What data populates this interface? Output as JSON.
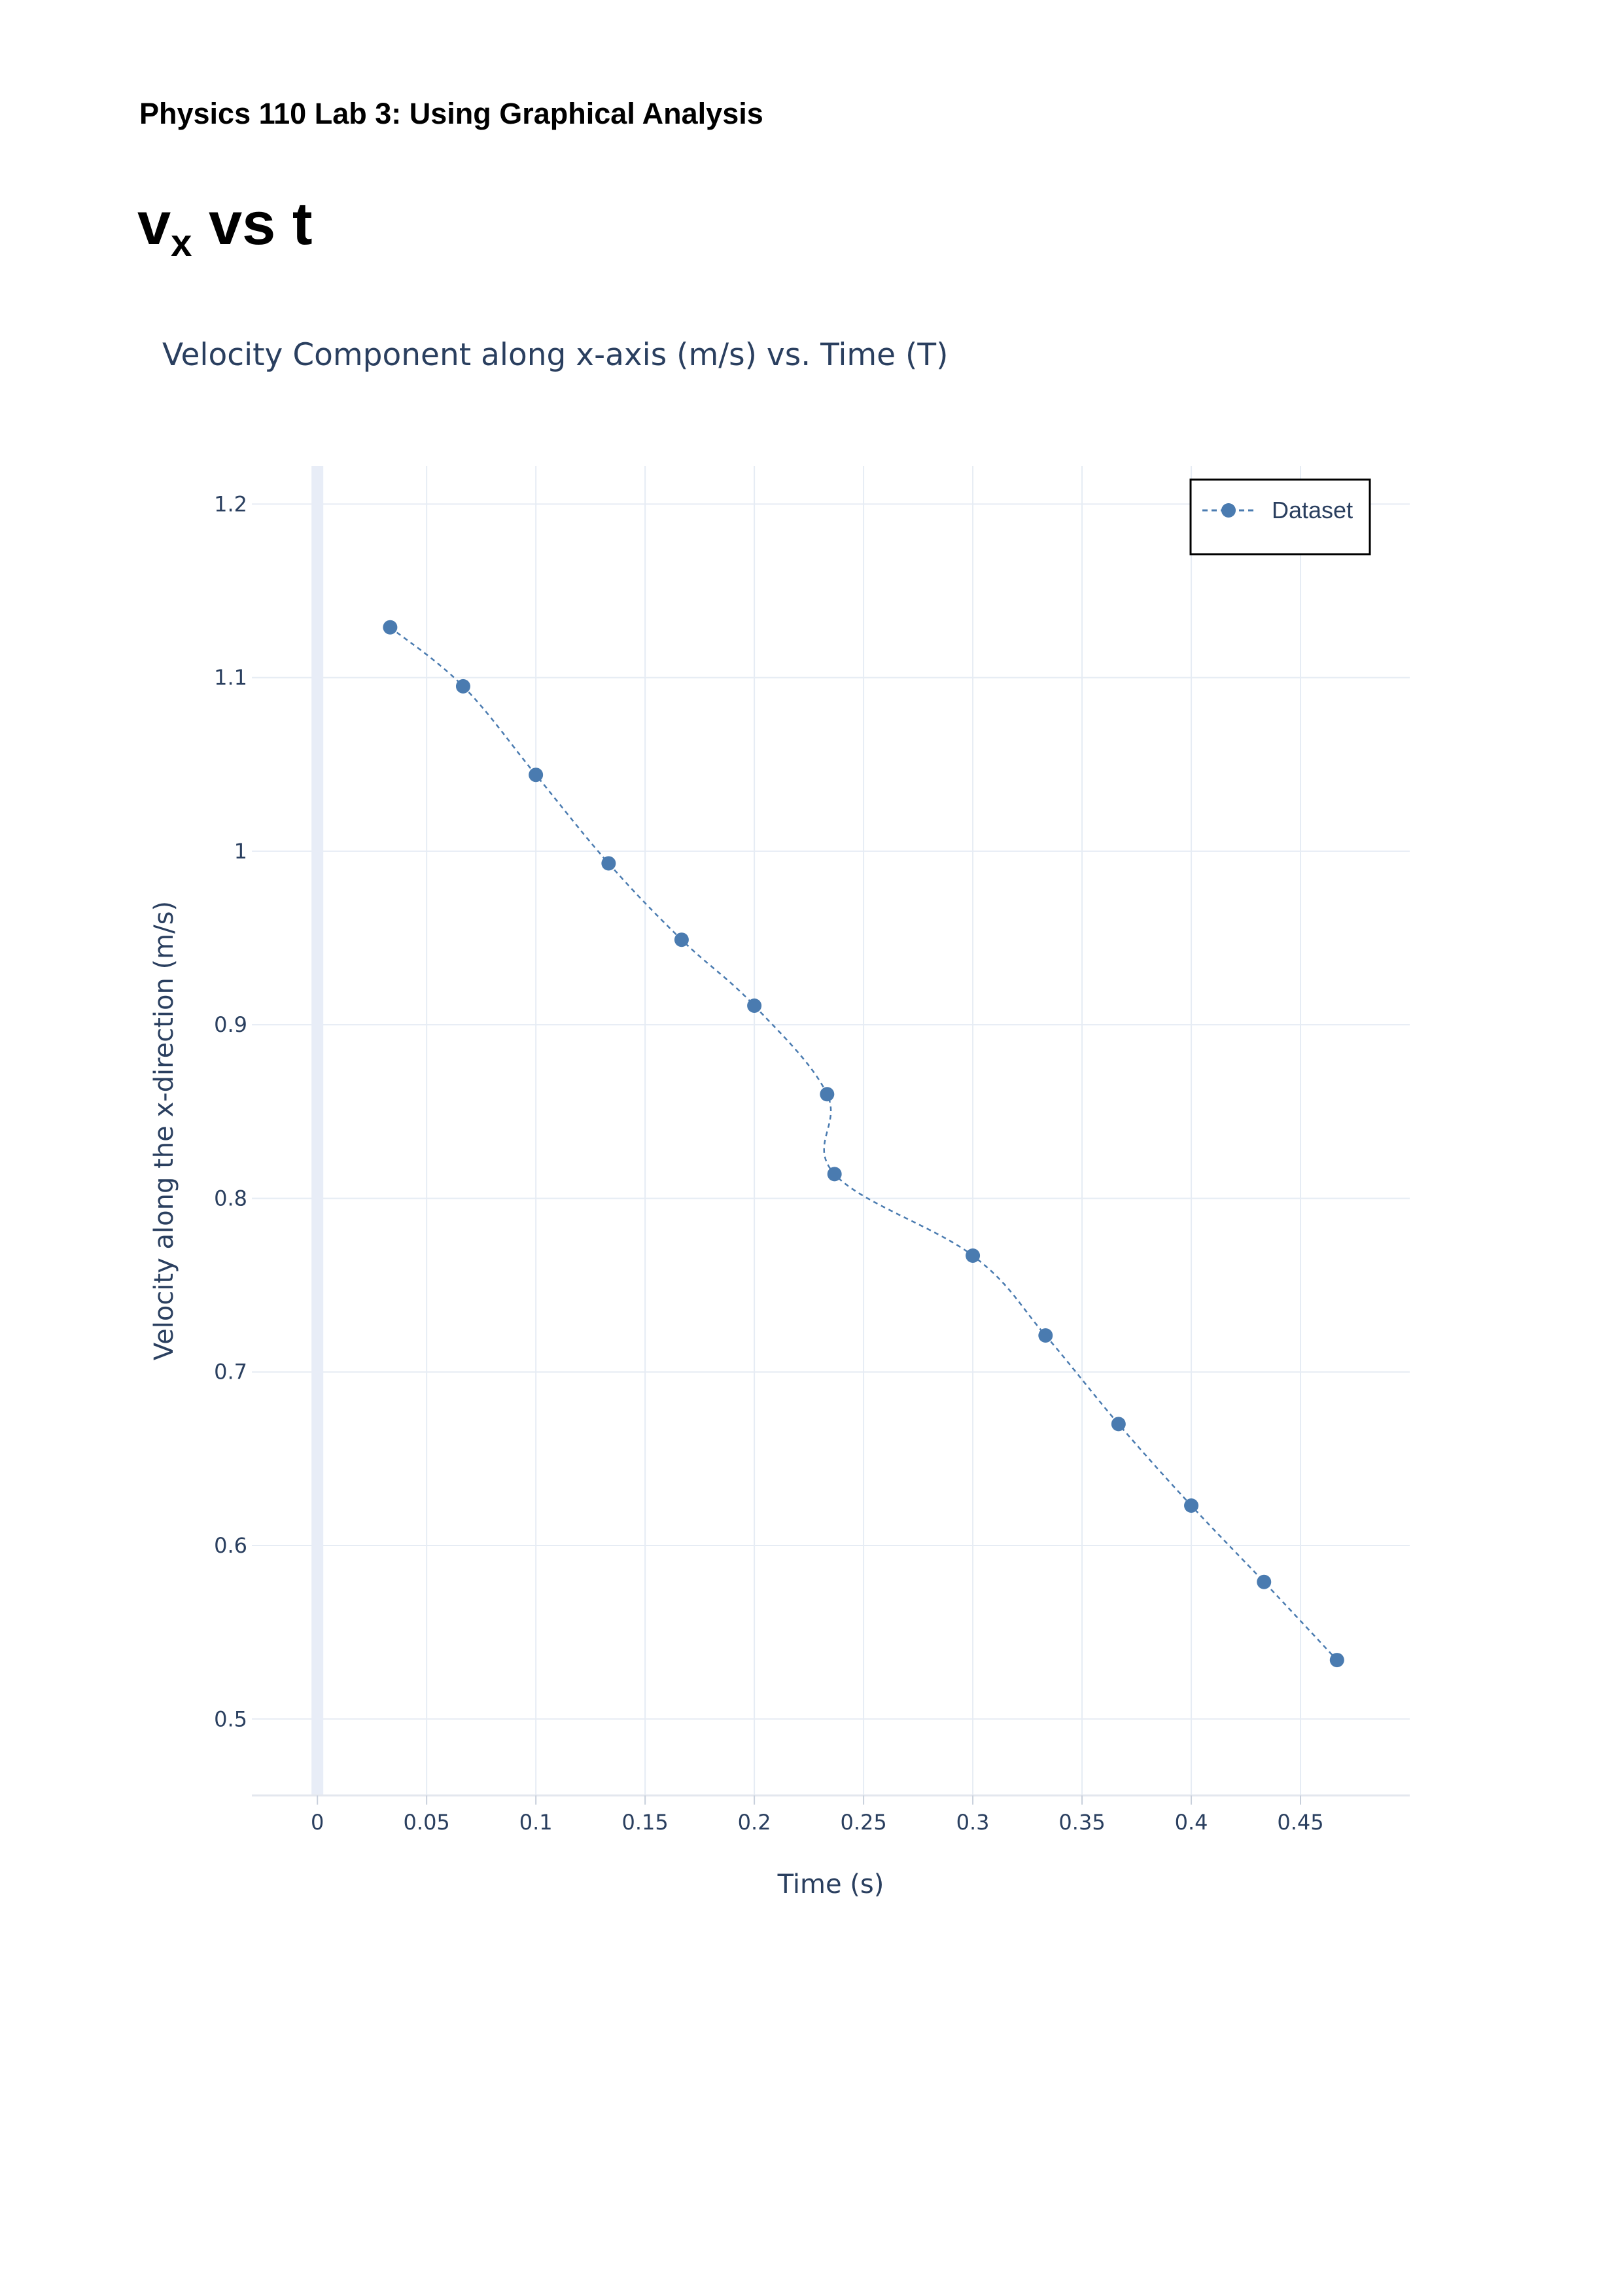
{
  "document": {
    "header": "Physics 110 Lab 3: Using Graphical Analysis",
    "section_title_main": "v",
    "section_title_sub": "x",
    "section_title_rest": " vs t"
  },
  "colors": {
    "series": "#4a7bb0",
    "grid": "#e6ecf4",
    "zeroline": "#e8edf7",
    "text": "#2a3f5f"
  },
  "chart_data": {
    "type": "scatter",
    "mode": "lines+markers",
    "line_style": "dashed",
    "title": "Velocity Component along x-axis (m/s) vs. Time (T)",
    "xlabel": "Time (s)",
    "ylabel": "Velocity along the x-direction (m/s)",
    "xlim": [
      -0.03,
      0.5
    ],
    "ylim": [
      0.456,
      1.222
    ],
    "x_ticks": [
      0,
      0.05,
      0.1,
      0.15,
      0.2,
      0.25,
      0.3,
      0.35,
      0.4,
      0.45
    ],
    "x_tick_labels": [
      "0",
      "0.05",
      "0.1",
      "0.15",
      "0.2",
      "0.25",
      "0.3",
      "0.35",
      "0.4",
      "0.45"
    ],
    "y_ticks": [
      0.5,
      0.6,
      0.7,
      0.8,
      0.9,
      1,
      1.1,
      1.2
    ],
    "y_tick_labels": [
      "0.5",
      "0.6",
      "0.7",
      "0.8",
      "0.9",
      "1",
      "1.1",
      "1.2"
    ],
    "grid": true,
    "legend": {
      "position": "top-right",
      "entries": [
        "Dataset"
      ]
    },
    "series": [
      {
        "name": "Dataset",
        "x": [
          0.0333,
          0.0667,
          0.1,
          0.1333,
          0.1667,
          0.2,
          0.2333,
          0.2367,
          0.3,
          0.3333,
          0.3667,
          0.4,
          0.4333,
          0.4667
        ],
        "y": [
          1.129,
          1.095,
          1.044,
          0.993,
          0.949,
          0.911,
          0.86,
          0.814,
          0.767,
          0.721,
          0.67,
          0.623,
          0.579,
          0.534
        ]
      }
    ]
  }
}
